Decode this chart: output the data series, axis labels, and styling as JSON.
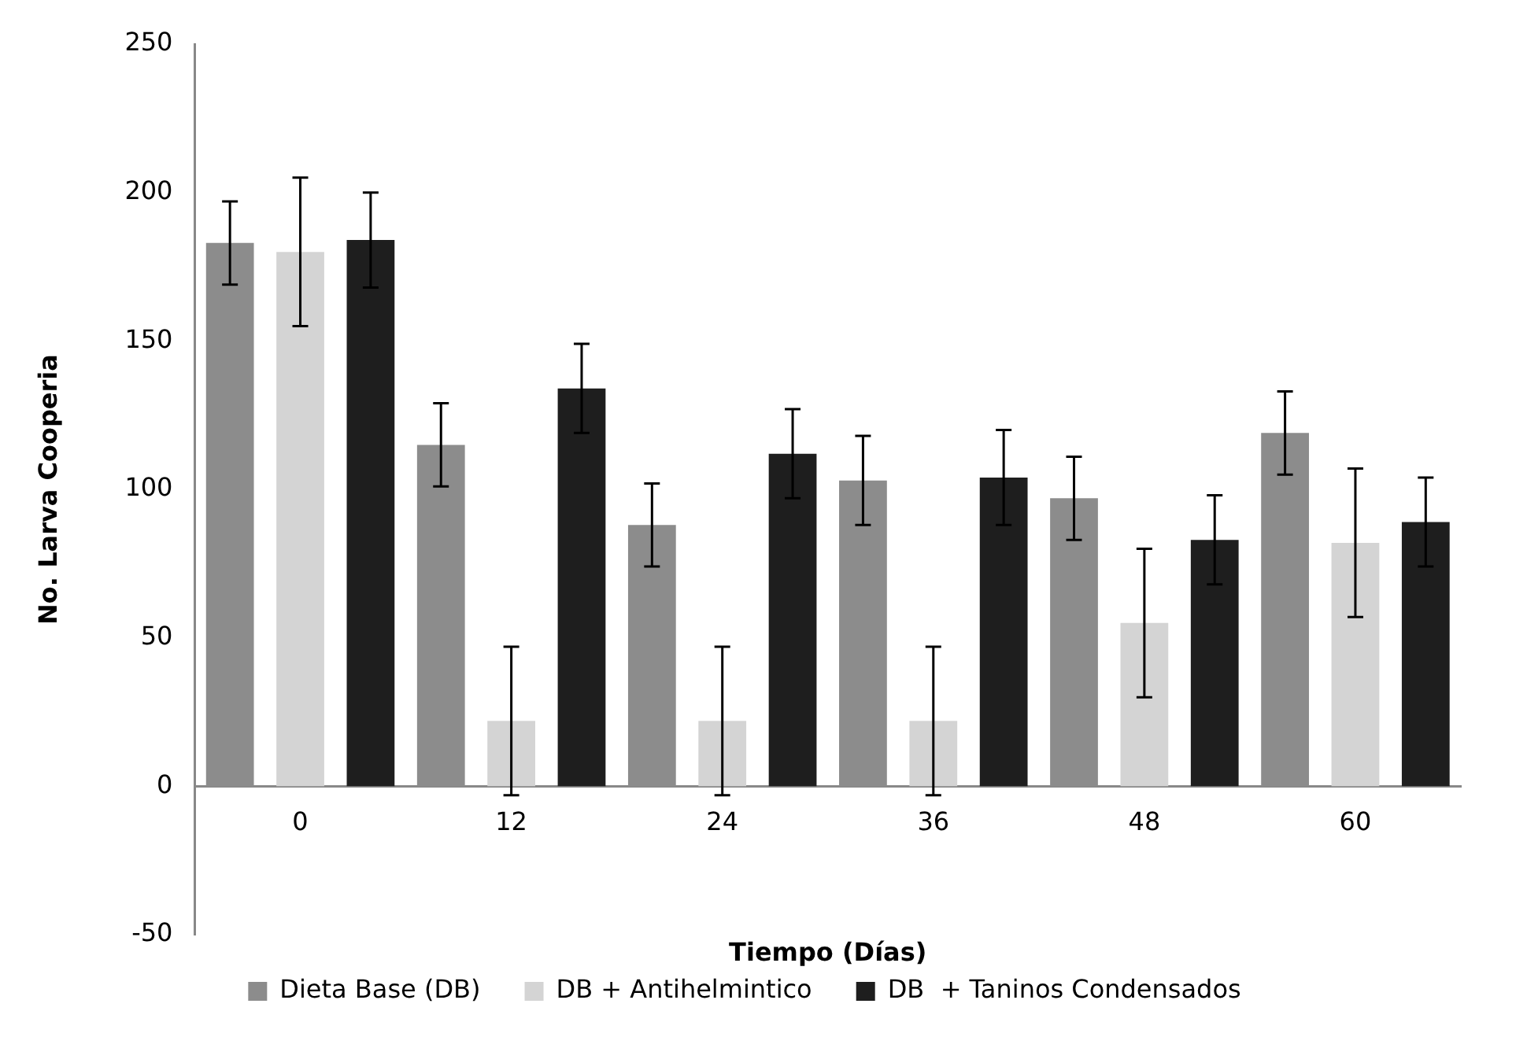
{
  "chart_data": {
    "type": "bar",
    "xlabel": "Tiempo (Días)",
    "ylabel": "No. Larva Cooperia",
    "categories": [
      "0",
      "12",
      "24",
      "36",
      "48",
      "60"
    ],
    "series": [
      {
        "name": "Dieta Base (DB)",
        "color": "#8c8c8c",
        "values": [
          183,
          115,
          88,
          103,
          97,
          119
        ],
        "errors": [
          14,
          14,
          14,
          15,
          14,
          14
        ]
      },
      {
        "name": "DB + Antihelmintico",
        "color": "#d4d4d4",
        "values": [
          180,
          22,
          22,
          22,
          55,
          82
        ],
        "errors": [
          25,
          25,
          25,
          25,
          25,
          25
        ]
      },
      {
        "name": "DB  + Taninos Condensados",
        "color": "#1e1e1e",
        "values": [
          184,
          134,
          112,
          104,
          83,
          89
        ],
        "errors": [
          16,
          15,
          15,
          16,
          15,
          15
        ]
      }
    ],
    "ylim": [
      -50,
      250
    ],
    "yticks": [
      -50,
      0,
      50,
      100,
      150,
      200,
      250
    ],
    "grid": false,
    "legend": "bottom"
  }
}
